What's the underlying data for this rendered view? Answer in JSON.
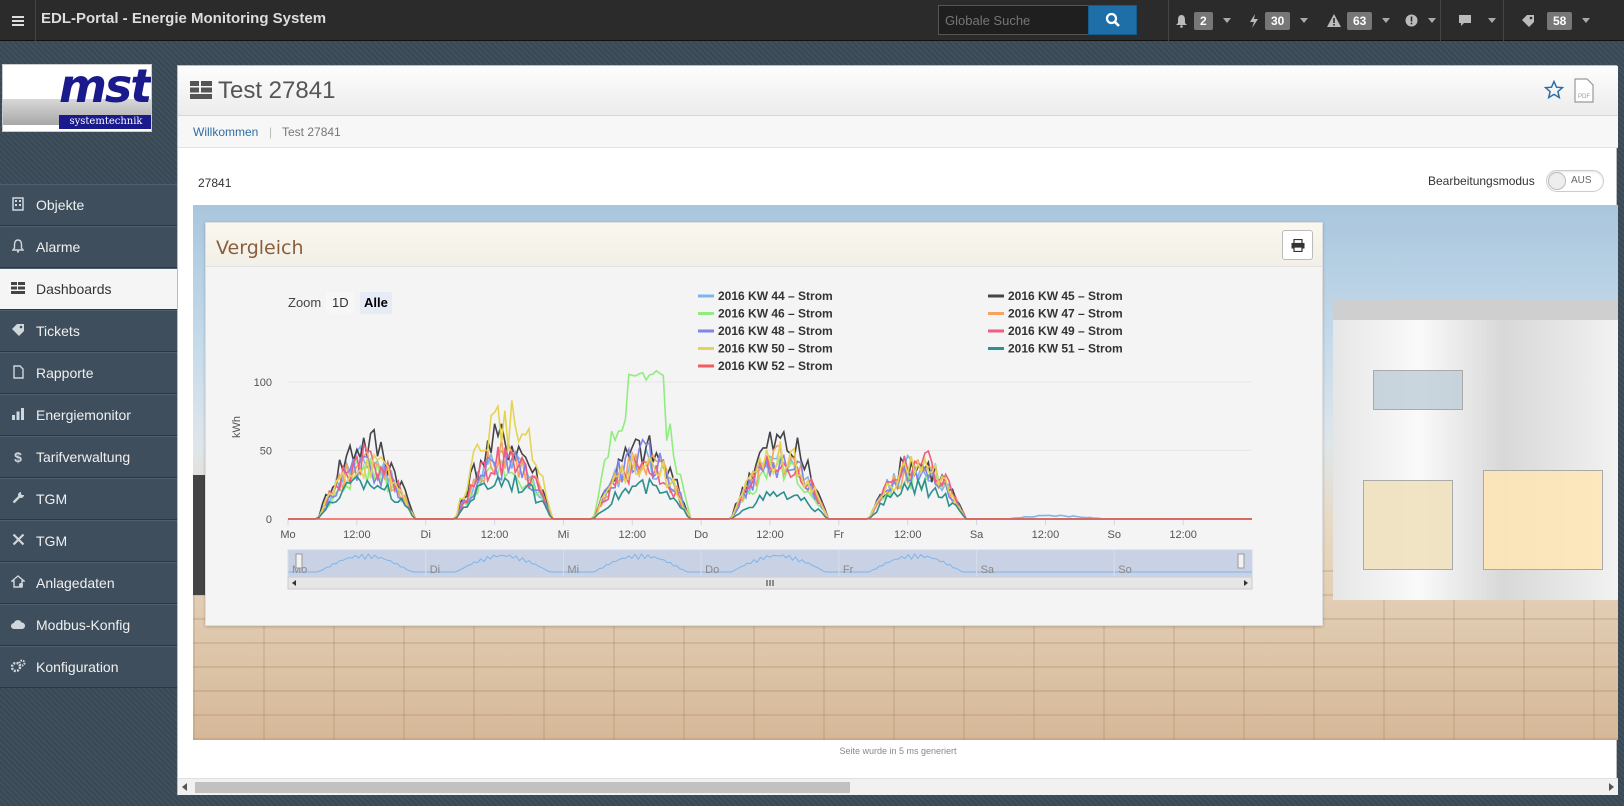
{
  "topbar": {
    "title": "EDL-Portal - Energie Monitoring System",
    "search_placeholder": "Globale Suche",
    "notifications_count": "2",
    "events_count": "30",
    "warnings_count": "63",
    "tickets_count": "58",
    "accent": "#1e6fa8",
    "icons": [
      "menu-icon",
      "search-icon",
      "bell-icon",
      "bolt-icon",
      "warning-icon",
      "info-icon",
      "comment-icon",
      "tag-icon"
    ]
  },
  "logo": {
    "word": "mst",
    "tagline": "systemtechnik"
  },
  "sidebar": {
    "items": [
      {
        "label": "Objekte",
        "icon": "building-icon"
      },
      {
        "label": "Alarme",
        "icon": "bell-icon"
      },
      {
        "label": "Dashboards",
        "icon": "dashboard-icon"
      },
      {
        "label": "Tickets",
        "icon": "tag-icon"
      },
      {
        "label": "Rapporte",
        "icon": "document-icon"
      },
      {
        "label": "Energiemonitor",
        "icon": "bar-chart-icon"
      },
      {
        "label": "Tarifverwaltung",
        "icon": "dollar-icon"
      },
      {
        "label": "TGM",
        "icon": "wrench-icon"
      },
      {
        "label": "TGM",
        "icon": "tools-icon"
      },
      {
        "label": "Anlagedaten",
        "icon": "house-settings-icon"
      },
      {
        "label": "Modbus-Konfig",
        "icon": "cloud-icon"
      },
      {
        "label": "Konfiguration",
        "icon": "gears-icon"
      }
    ],
    "active": "Dashboards"
  },
  "page": {
    "title": "Test 27841",
    "breadcrumb": [
      "Willkommen",
      "Test 27841"
    ],
    "id_label": "27841",
    "edit_mode_label": "Bearbeitungsmodus",
    "edit_mode_state": "AUS",
    "footer": "Seite wurde in 5 ms generiert"
  },
  "chart_panel": {
    "title": "Vergleich",
    "zoom_label": "Zoom",
    "zoom_options": [
      "1D",
      "Alle"
    ],
    "zoom_selected": "Alle"
  },
  "chart_data": {
    "type": "line",
    "title": "",
    "ylabel": "kWh",
    "ylim": [
      0,
      140
    ],
    "yticks": [
      0,
      50,
      100
    ],
    "x_tick_labels": [
      "Mo",
      "12:00",
      "Di",
      "12:00",
      "Mi",
      "12:00",
      "Do",
      "12:00",
      "Fr",
      "12:00",
      "Sa",
      "12:00",
      "So",
      "12:00"
    ],
    "navigator_labels": [
      "Mo",
      "Di",
      "Mi",
      "Do",
      "Fr",
      "Sa",
      "So"
    ],
    "legend_placement": "top-right",
    "grid": true,
    "day_peaks_description_units": "kWh",
    "series": [
      {
        "name": "2016 KW 44 – Strom",
        "color": "#7cb5ec",
        "peaks": [
          55,
          55,
          55,
          55,
          50,
          3,
          0
        ]
      },
      {
        "name": "2016 KW 45 – Strom",
        "color": "#434348",
        "peaks": [
          72,
          75,
          65,
          72,
          52,
          0,
          0
        ]
      },
      {
        "name": "2016 KW 46 – Strom",
        "color": "#90ed7d",
        "peaks": [
          45,
          45,
          110,
          48,
          40,
          0,
          0
        ]
      },
      {
        "name": "2016 KW 47 – Strom",
        "color": "#f7a35c",
        "peaks": [
          50,
          60,
          55,
          55,
          45,
          0,
          0
        ]
      },
      {
        "name": "2016 KW 48 – Strom",
        "color": "#8085e9",
        "peaks": [
          48,
          52,
          58,
          52,
          45,
          0,
          0
        ]
      },
      {
        "name": "2016 KW 49 – Strom",
        "color": "#f15c80",
        "peaks": [
          55,
          55,
          50,
          55,
          55,
          0,
          0
        ]
      },
      {
        "name": "2016 KW 50 – Strom",
        "color": "#e4d354",
        "peaks": [
          52,
          93,
          55,
          58,
          48,
          0,
          0
        ]
      },
      {
        "name": "2016 KW 51 – Strom",
        "color": "#2b908f",
        "peaks": [
          35,
          38,
          30,
          22,
          30,
          0,
          0
        ]
      },
      {
        "name": "2016 KW 52 – Strom",
        "color": "#f45b5b",
        "peaks": [
          0,
          0,
          0,
          0,
          0,
          0,
          0
        ]
      }
    ]
  }
}
